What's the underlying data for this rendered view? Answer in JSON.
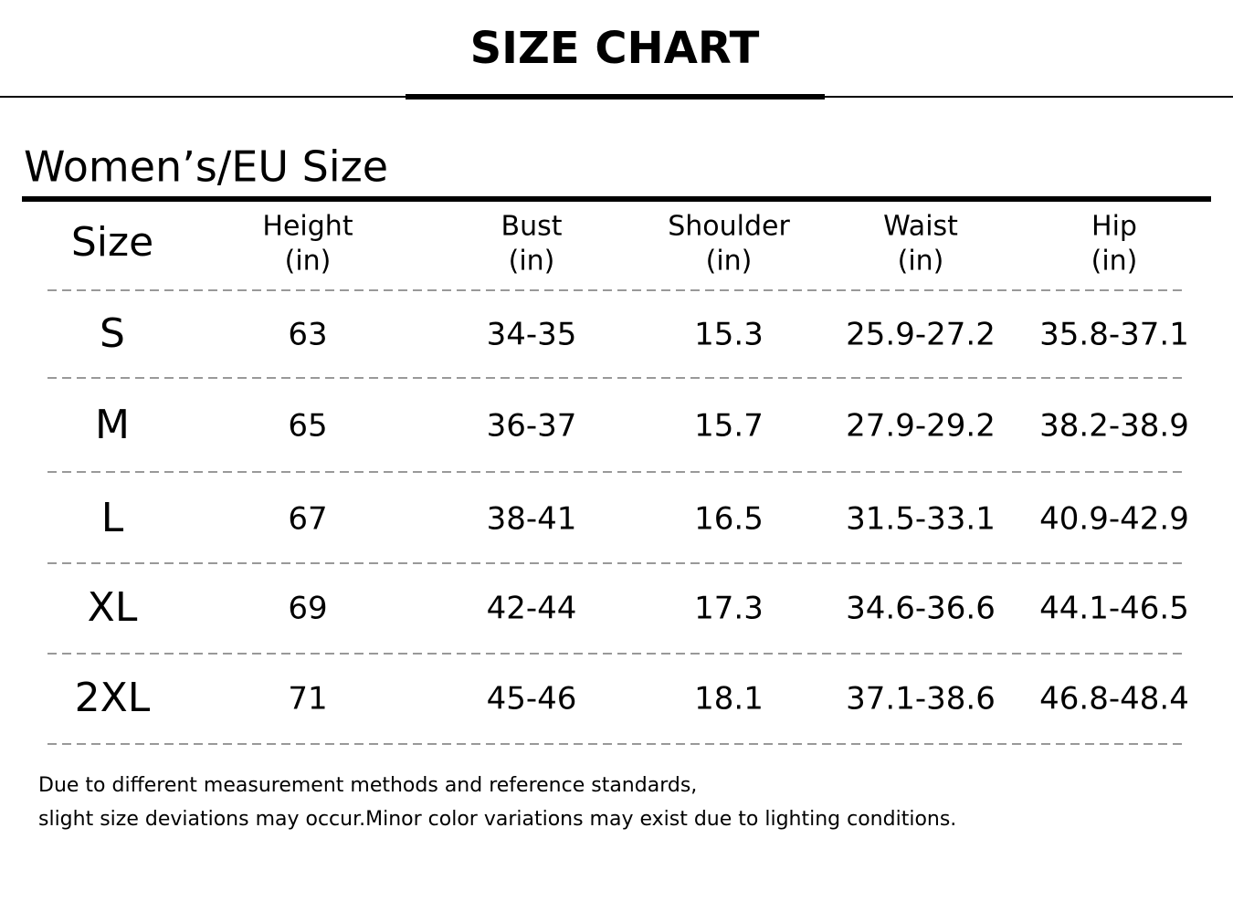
{
  "header": {
    "title": "SIZE CHART"
  },
  "section": {
    "title": "Women’s/EU Size"
  },
  "table": {
    "columns": [
      {
        "name": "Size"
      },
      {
        "name": "Height",
        "unit": "(in)"
      },
      {
        "name": "Bust",
        "unit": "(in)"
      },
      {
        "name": "Shoulder",
        "unit": "(in)"
      },
      {
        "name": "Waist",
        "unit": "(in)"
      },
      {
        "name": "Hip",
        "unit": "(in)"
      }
    ],
    "rows": [
      [
        "S",
        "63",
        "34-35",
        "15.3",
        "25.9-27.2",
        "35.8-37.1"
      ],
      [
        "M",
        "65",
        "36-37",
        "15.7",
        "27.9-29.2",
        "38.2-38.9"
      ],
      [
        "L",
        "67",
        "38-41",
        "16.5",
        "31.5-33.1",
        "40.9-42.9"
      ],
      [
        "XL",
        "69",
        "42-44",
        "17.3",
        "34.6-36.6",
        "44.1-46.5"
      ],
      [
        "2XL",
        "71",
        "45-46",
        "18.1",
        "37.1-38.6",
        "46.8-48.4"
      ]
    ]
  },
  "note": {
    "lines": [
      "Due to different measurement methods and reference standards,",
      "slight size deviations may occur.Minor color variations may exist due to lighting conditions."
    ]
  }
}
